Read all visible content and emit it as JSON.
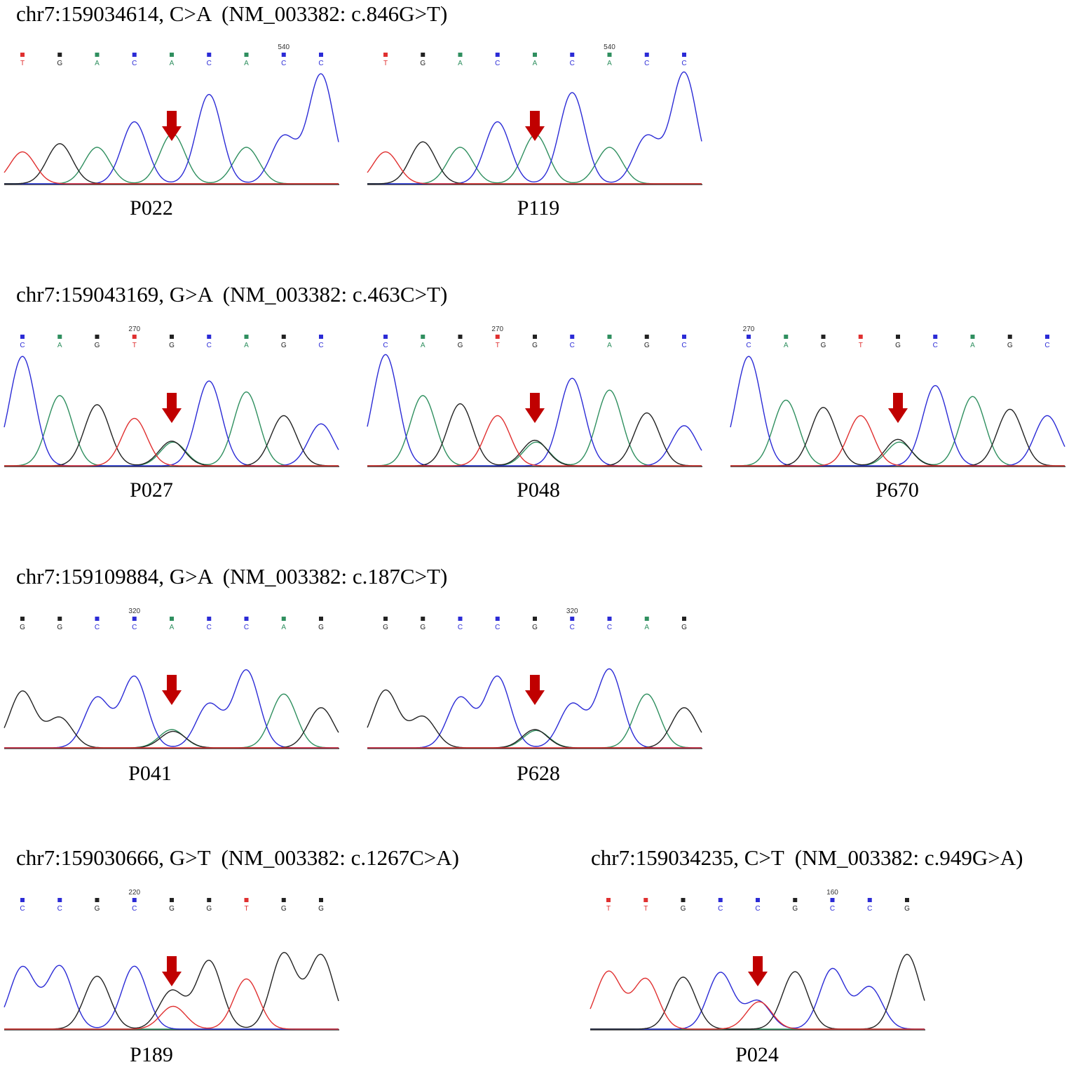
{
  "colors": {
    "A": "#2f8f5f",
    "C": "#2b2bd6",
    "G": "#222222",
    "T": "#e03030",
    "arrow": "#c00000",
    "baseline": "#2a2a2a"
  },
  "figure": {
    "groups": [
      {
        "title": "chr7:159034614, C>A  (NM_003382: c.846G>T)",
        "panels": [
          {
            "sample": "P022",
            "bases": [
              "T",
              "G",
              "A",
              "C",
              "A",
              "C",
              "A",
              "C",
              "C"
            ],
            "pos_label": "540",
            "pos_index": 7,
            "heights": [
              0.35,
              0.44,
              0.4,
              0.68,
              0.27,
              0.98,
              0.4,
              0.52,
              1.2
            ],
            "variant_index": 4,
            "secondary": "A",
            "secondary_height": 0.28
          },
          {
            "sample": "P119",
            "bases": [
              "T",
              "G",
              "A",
              "C",
              "A",
              "C",
              "A",
              "C",
              "C"
            ],
            "pos_label": "540",
            "pos_index": 6,
            "heights": [
              0.35,
              0.46,
              0.4,
              0.68,
              0.26,
              1.0,
              0.4,
              0.52,
              1.22
            ],
            "variant_index": 4,
            "secondary": "A",
            "secondary_height": 0.28
          }
        ]
      },
      {
        "title": "chr7:159043169, G>A  (NM_003382: c.463C>T)",
        "panels": [
          {
            "sample": "P027",
            "bases": [
              "C",
              "A",
              "G",
              "T",
              "G",
              "C",
              "A",
              "G",
              "C"
            ],
            "pos_label": "270",
            "pos_index": 3,
            "heights": [
              1.2,
              0.77,
              0.67,
              0.52,
              0.27,
              0.93,
              0.81,
              0.55,
              0.46
            ],
            "variant_index": 4,
            "secondary": "A",
            "secondary_height": 0.26
          },
          {
            "sample": "P048",
            "bases": [
              "C",
              "A",
              "G",
              "T",
              "G",
              "C",
              "A",
              "G",
              "C"
            ],
            "pos_label": "270",
            "pos_index": 3,
            "heights": [
              1.22,
              0.77,
              0.68,
              0.55,
              0.28,
              0.96,
              0.83,
              0.58,
              0.44
            ],
            "variant_index": 4,
            "secondary": "A",
            "secondary_height": 0.26
          },
          {
            "sample": "P670",
            "bases": [
              "C",
              "A",
              "G",
              "T",
              "G",
              "C",
              "A",
              "G",
              "C"
            ],
            "pos_label": "270",
            "pos_index": 0,
            "heights": [
              1.2,
              0.72,
              0.64,
              0.55,
              0.29,
              0.88,
              0.76,
              0.62,
              0.55
            ],
            "variant_index": 4,
            "secondary": "A",
            "secondary_height": 0.26
          }
        ]
      },
      {
        "title": "chr7:159109884, G>A  (NM_003382: c.187C>T)",
        "panels": [
          {
            "sample": "P041",
            "bases": [
              "G",
              "G",
              "C",
              "C",
              "A",
              "C",
              "C",
              "A",
              "G"
            ],
            "pos_label": "320",
            "pos_index": 3,
            "heights": [
              0.62,
              0.33,
              0.55,
              0.78,
              0.2,
              0.48,
              0.85,
              0.59,
              0.44
            ],
            "variant_index": 4,
            "secondary": "G",
            "secondary_height": 0.18
          },
          {
            "sample": "P628",
            "bases": [
              "G",
              "G",
              "C",
              "C",
              "G",
              "C",
              "C",
              "A",
              "G"
            ],
            "pos_label": "320",
            "pos_index": 5,
            "heights": [
              0.63,
              0.34,
              0.55,
              0.78,
              0.2,
              0.48,
              0.86,
              0.59,
              0.44
            ],
            "variant_index": 4,
            "secondary": "A",
            "secondary_height": 0.19
          }
        ]
      },
      {
        "title": "chr7:159030666, G>T  (NM_003382: c.1267C>A)",
        "panels": [
          {
            "sample": "P189",
            "bases": [
              "C",
              "C",
              "G",
              "C",
              "G",
              "G",
              "T",
              "G",
              "G"
            ],
            "pos_label": "220",
            "pos_index": 3,
            "heights": [
              0.68,
              0.69,
              0.58,
              0.69,
              0.42,
              0.75,
              0.55,
              0.83,
              0.81
            ],
            "variant_index": 4,
            "secondary": "T",
            "secondary_height": 0.25
          }
        ]
      },
      {
        "title": "chr7:159034235, C>T  (NM_003382: c.949G>A)",
        "panels": [
          {
            "sample": "P024",
            "bases": [
              "T",
              "T",
              "G",
              "C",
              "C",
              "G",
              "C",
              "C",
              "G"
            ],
            "pos_label": "160",
            "pos_index": 6,
            "heights": [
              0.63,
              0.55,
              0.57,
              0.62,
              0.31,
              0.63,
              0.66,
              0.46,
              0.82
            ],
            "variant_index": 4,
            "secondary": "T",
            "secondary_height": 0.3
          }
        ]
      }
    ]
  }
}
